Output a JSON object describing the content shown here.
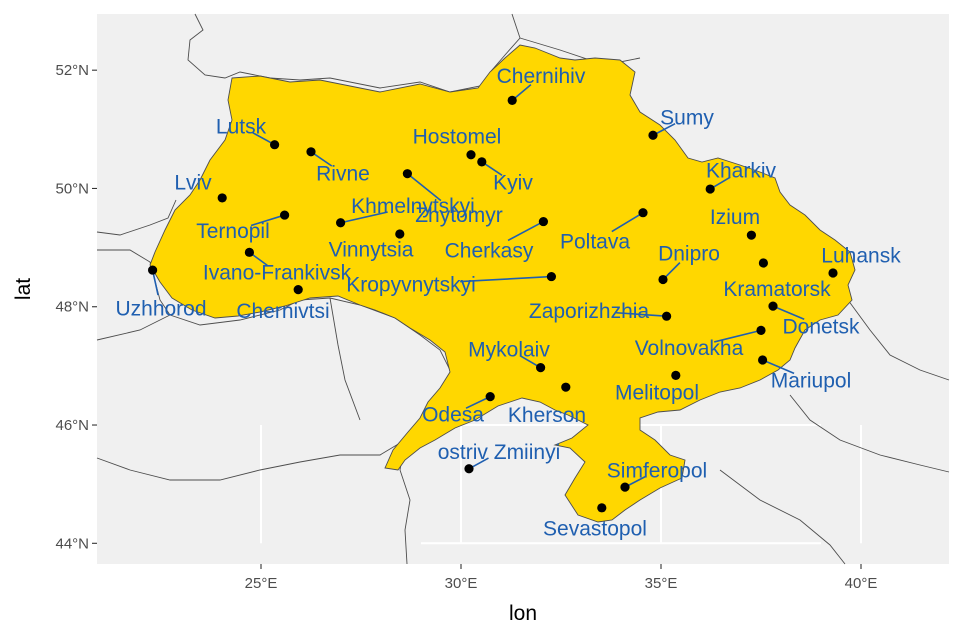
{
  "chart_data": {
    "type": "map",
    "xlabel": "lon",
    "ylabel": "lat",
    "xlim": [
      20.9,
      42.2
    ],
    "ylim": [
      43.65,
      52.95
    ],
    "x_ticks": [
      {
        "value": 25,
        "label": "25°E"
      },
      {
        "value": 30,
        "label": "30°E"
      },
      {
        "value": 35,
        "label": "35°E"
      },
      {
        "value": 40,
        "label": "40°E"
      }
    ],
    "y_ticks": [
      {
        "value": 44,
        "label": "44°N"
      },
      {
        "value": 46,
        "label": "46°N"
      },
      {
        "value": 48,
        "label": "48°N"
      },
      {
        "value": 50,
        "label": "50°N"
      },
      {
        "value": 52,
        "label": "52°N"
      }
    ],
    "colors": {
      "panel_background": "#f0f0f0",
      "grid": "#ffffff",
      "country_fill": "#ffd700",
      "borders": "#4d4d4d",
      "points": "#000000",
      "labels": "#1f5fb0"
    },
    "cities": [
      {
        "name": "Chernihiv",
        "lon": 31.28,
        "lat": 51.49,
        "label_lon": 32.0,
        "label_lat": 51.9
      },
      {
        "name": "Sumy",
        "lon": 34.8,
        "lat": 50.9,
        "label_lon": 35.65,
        "label_lat": 51.2
      },
      {
        "name": "Lutsk",
        "lon": 25.34,
        "lat": 50.74,
        "label_lon": 24.5,
        "label_lat": 51.05
      },
      {
        "name": "Rivne",
        "lon": 26.25,
        "lat": 50.62,
        "label_lon": 27.05,
        "label_lat": 50.25
      },
      {
        "name": "Hostomel",
        "lon": 30.25,
        "lat": 50.57,
        "label_lon": 29.9,
        "label_lat": 50.88
      },
      {
        "name": "Kyiv",
        "lon": 30.52,
        "lat": 50.45,
        "label_lon": 31.3,
        "label_lat": 50.1
      },
      {
        "name": "Zhytomyr",
        "lon": 28.66,
        "lat": 50.25,
        "label_lon": 29.95,
        "label_lat": 49.55
      },
      {
        "name": "Kharkiv",
        "lon": 36.23,
        "lat": 49.99,
        "label_lon": 37.0,
        "label_lat": 50.3
      },
      {
        "name": "Lviv",
        "lon": 24.03,
        "lat": 49.84,
        "label_lon": 23.3,
        "label_lat": 50.1
      },
      {
        "name": "Khmelnytskyi",
        "lon": 26.99,
        "lat": 49.42,
        "label_lon": 28.8,
        "label_lat": 49.7
      },
      {
        "name": "Ternopil",
        "lon": 25.59,
        "lat": 49.55,
        "label_lon": 24.3,
        "label_lat": 49.28
      },
      {
        "name": "Izium",
        "lon": 37.26,
        "lat": 49.21,
        "label_lon": 36.85,
        "label_lat": 49.52
      },
      {
        "name": "Vinnytsia",
        "lon": 28.47,
        "lat": 49.23,
        "label_lon": 27.75,
        "label_lat": 48.97
      },
      {
        "name": "Cherkasy",
        "lon": 32.06,
        "lat": 49.44,
        "label_lon": 30.7,
        "label_lat": 48.95
      },
      {
        "name": "Poltava",
        "lon": 34.55,
        "lat": 49.59,
        "label_lon": 33.35,
        "label_lat": 49.1
      },
      {
        "name": "Dnipro",
        "lon": 35.05,
        "lat": 48.46,
        "label_lon": 35.7,
        "label_lat": 48.9
      },
      {
        "name": "Luhansk",
        "lon": 39.3,
        "lat": 48.57,
        "label_lon": 40.0,
        "label_lat": 48.87
      },
      {
        "name": "Kramatorsk",
        "lon": 37.56,
        "lat": 48.74,
        "label_lon": 37.9,
        "label_lat": 48.3
      },
      {
        "name": "Uzhhorod",
        "lon": 22.29,
        "lat": 48.62,
        "label_lon": 22.5,
        "label_lat": 47.97
      },
      {
        "name": "Ivano-Frankivsk",
        "lon": 24.71,
        "lat": 48.92,
        "label_lon": 25.4,
        "label_lat": 48.58
      },
      {
        "name": "Kropyvnytskyi",
        "lon": 32.26,
        "lat": 48.51,
        "label_lon": 28.75,
        "label_lat": 48.38
      },
      {
        "name": "Chernivtsi",
        "lon": 25.93,
        "lat": 48.29,
        "label_lon": 25.55,
        "label_lat": 47.93
      },
      {
        "name": "Zaporizhzhia",
        "lon": 35.14,
        "lat": 47.84,
        "label_lon": 33.2,
        "label_lat": 47.93
      },
      {
        "name": "Donetsk",
        "lon": 37.8,
        "lat": 48.01,
        "label_lon": 39.0,
        "label_lat": 47.67
      },
      {
        "name": "Volnovakha",
        "lon": 37.5,
        "lat": 47.6,
        "label_lon": 35.7,
        "label_lat": 47.3
      },
      {
        "name": "Mykolaiv",
        "lon": 31.99,
        "lat": 46.97,
        "label_lon": 31.2,
        "label_lat": 47.28
      },
      {
        "name": "Mariupol",
        "lon": 37.54,
        "lat": 47.1,
        "label_lon": 38.75,
        "label_lat": 46.75
      },
      {
        "name": "Melitopol",
        "lon": 35.37,
        "lat": 46.84,
        "label_lon": 34.9,
        "label_lat": 46.55
      },
      {
        "name": "Kherson",
        "lon": 32.62,
        "lat": 46.64,
        "label_lon": 32.15,
        "label_lat": 46.17
      },
      {
        "name": "Odesa",
        "lon": 30.73,
        "lat": 46.48,
        "label_lon": 29.8,
        "label_lat": 46.18
      },
      {
        "name": "ostriv Zmiinyi",
        "lon": 30.2,
        "lat": 45.26,
        "label_lon": 30.95,
        "label_lat": 45.54
      },
      {
        "name": "Simferopol",
        "lon": 34.1,
        "lat": 44.95,
        "label_lon": 34.9,
        "label_lat": 45.23
      },
      {
        "name": "Sevastopol",
        "lon": 33.52,
        "lat": 44.6,
        "label_lon": 33.35,
        "label_lat": 44.25
      }
    ]
  }
}
